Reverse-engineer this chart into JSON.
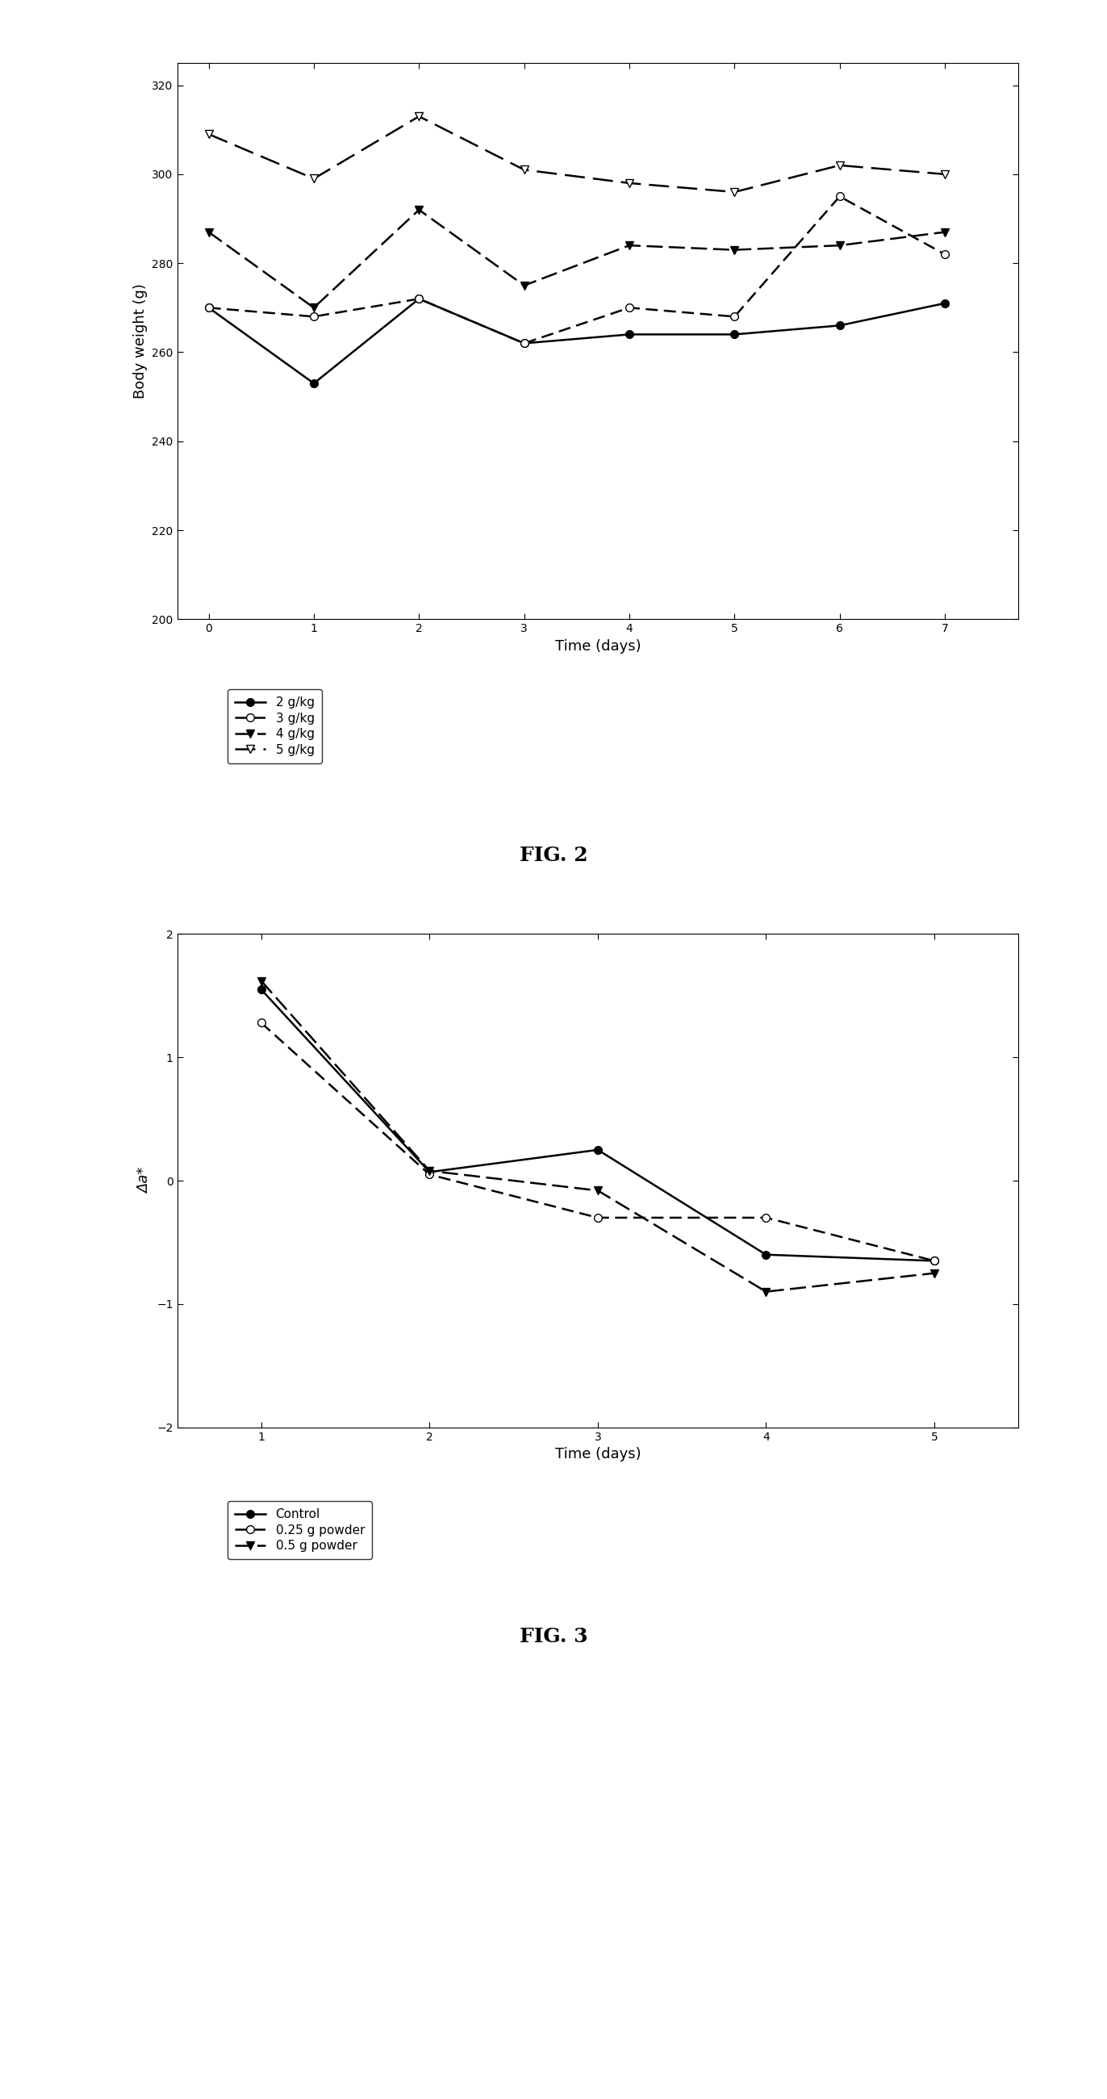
{
  "fig1": {
    "title": "FIG. 2",
    "xlabel": "Time (days)",
    "ylabel": "Body weight (g)",
    "xlim": [
      -0.3,
      7.7
    ],
    "ylim": [
      200,
      325
    ],
    "yticks": [
      200,
      220,
      240,
      260,
      280,
      300,
      320
    ],
    "xticks": [
      0,
      1,
      2,
      3,
      4,
      5,
      6,
      7
    ],
    "series": [
      {
        "label": "2 g/kg",
        "x": [
          0,
          1,
          2,
          3,
          4,
          5,
          6,
          7
        ],
        "y": [
          270,
          253,
          272,
          262,
          264,
          264,
          266,
          271
        ],
        "linestyle": "solid",
        "marker": "filled_circle",
        "dashes": []
      },
      {
        "label": "3 g/kg",
        "x": [
          0,
          1,
          2,
          3,
          4,
          5,
          6,
          7
        ],
        "y": [
          270,
          268,
          272,
          262,
          270,
          268,
          295,
          282
        ],
        "linestyle": "dashed",
        "marker": "open_circle",
        "dashes": [
          6,
          3
        ]
      },
      {
        "label": "4 g/kg",
        "x": [
          0,
          1,
          2,
          3,
          4,
          5,
          6,
          7
        ],
        "y": [
          287,
          270,
          292,
          275,
          284,
          283,
          284,
          287
        ],
        "linestyle": "dashed",
        "marker": "filled_triangle_down",
        "dashes": [
          8,
          3
        ]
      },
      {
        "label": "5 g/kg",
        "x": [
          0,
          1,
          2,
          3,
          4,
          5,
          6,
          7
        ],
        "y": [
          309,
          299,
          313,
          301,
          298,
          296,
          302,
          300
        ],
        "linestyle": "dashed",
        "marker": "open_triangle_down",
        "dashes": [
          10,
          4
        ]
      }
    ]
  },
  "fig2": {
    "title": "FIG. 3",
    "xlabel": "Time (days)",
    "ylabel": "Δa*",
    "xlim": [
      0.5,
      5.5
    ],
    "ylim": [
      -2,
      2
    ],
    "yticks": [
      -2,
      -1,
      0,
      1,
      2
    ],
    "xticks": [
      1,
      2,
      3,
      4,
      5
    ],
    "series": [
      {
        "label": "Control",
        "x": [
          1,
          2,
          3,
          4,
          5
        ],
        "y": [
          1.55,
          0.07,
          0.25,
          -0.6,
          -0.65
        ],
        "linestyle": "solid",
        "marker": "filled_circle",
        "dashes": []
      },
      {
        "label": "0.25 g powder",
        "x": [
          1,
          2,
          3,
          4,
          5
        ],
        "y": [
          1.28,
          0.05,
          -0.3,
          -0.3,
          -0.65
        ],
        "linestyle": "dashed",
        "marker": "open_circle",
        "dashes": [
          6,
          3
        ]
      },
      {
        "label": "0.5 g powder",
        "x": [
          1,
          2,
          3,
          4,
          5
        ],
        "y": [
          1.62,
          0.08,
          -0.08,
          -0.9,
          -0.75
        ],
        "linestyle": "dashed",
        "marker": "filled_triangle_down",
        "dashes": [
          8,
          3
        ]
      }
    ]
  },
  "background_color": "#ffffff",
  "line_color": "#000000"
}
